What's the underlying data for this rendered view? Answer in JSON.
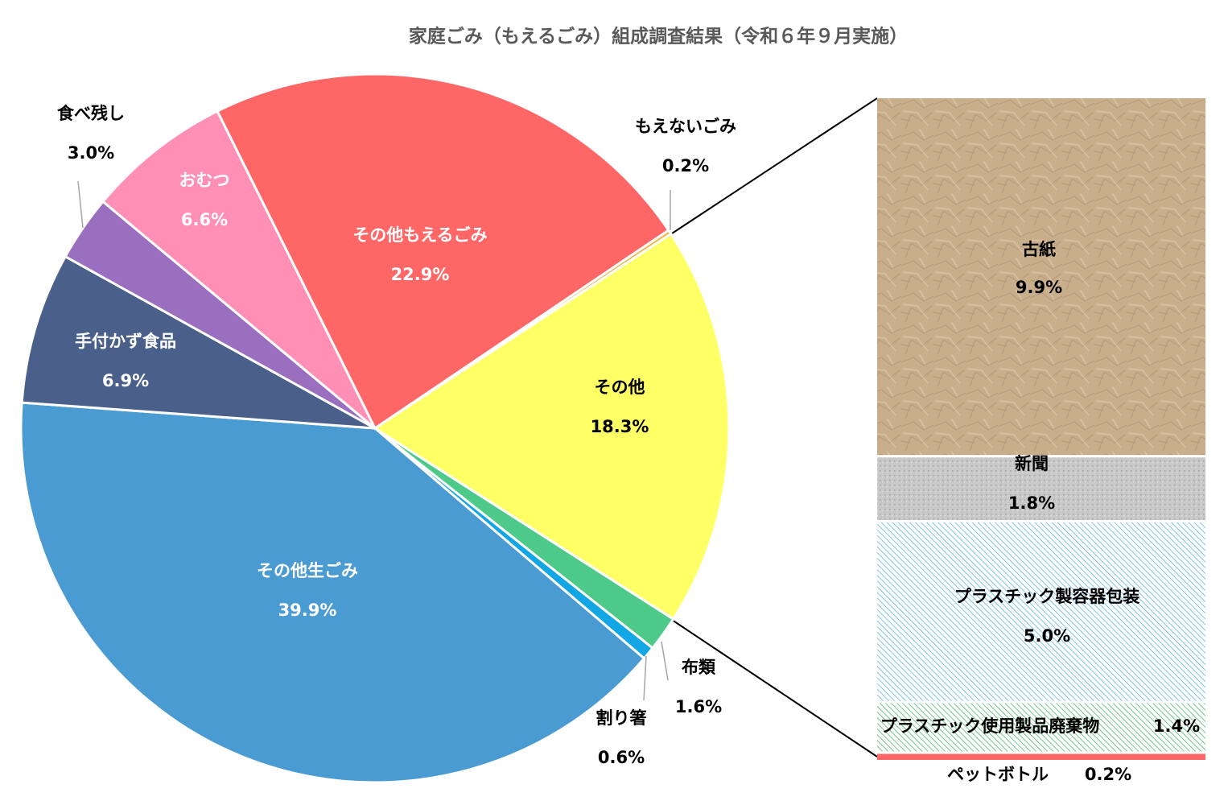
{
  "chart_data": {
    "type": "pie",
    "title": "家庭ごみ（もえるごみ）組成調査結果（令和６年９月実施）",
    "categories": [
      "もえないごみ",
      "その他",
      "布類",
      "割り箸",
      "その他生ごみ",
      "手付かず食品",
      "食べ残し",
      "おむつ",
      "その他もえるごみ"
    ],
    "values": [
      0.2,
      18.3,
      1.6,
      0.6,
      39.9,
      6.9,
      3.0,
      6.6,
      22.9
    ],
    "value_labels": [
      "0.2%",
      "18.3%",
      "1.6%",
      "0.6%",
      "39.9%",
      "6.9%",
      "3.0%",
      "6.6%",
      "22.9%"
    ],
    "colors": [
      "#f2b84b",
      "#ffff66",
      "#4dc98a",
      "#12a6e4",
      "#4b9bd3",
      "#4a5f8a",
      "#9b6fbf",
      "#ff8fb4",
      "#ff6666"
    ],
    "breakdown": {
      "type": "stacked-bar",
      "categories": [
        "古紙",
        "新聞",
        "プラスチック製容器包装",
        "プラスチック使用製品廃棄物",
        "ペットボトル"
      ],
      "values": [
        9.9,
        1.8,
        5.0,
        1.4,
        0.2
      ],
      "value_labels": [
        "9.9%",
        "1.8%",
        "5.0%",
        "1.4%",
        "0.2%"
      ],
      "colors": [
        "#c9ae8c",
        "#c8c8c8",
        "#a9d8ee",
        "#a8dcb4",
        "#ff6666"
      ]
    }
  }
}
